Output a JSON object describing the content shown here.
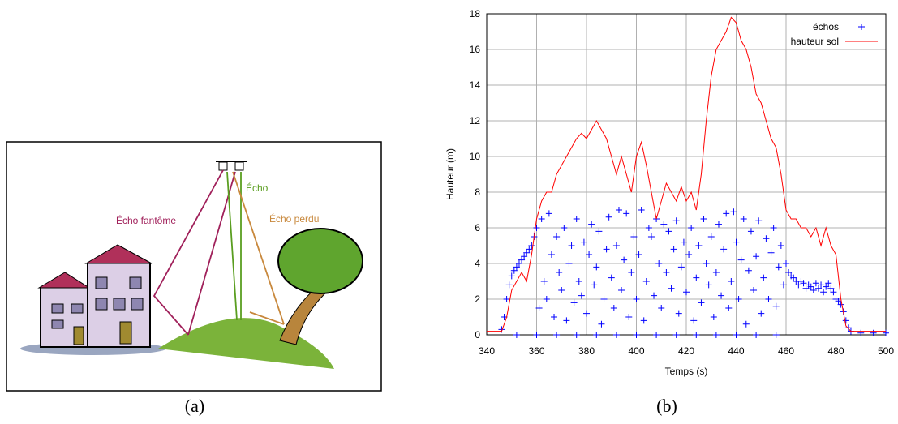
{
  "figure_a": {
    "labels": {
      "ghost": "Écho fantôme",
      "echo": "Écho",
      "lost": "Écho perdu"
    },
    "caption": "(a)"
  },
  "chart_data": {
    "type": "scatter",
    "caption": "(b)",
    "x_label": "Temps (s)",
    "y_label": "Hauteur (m)",
    "xlim": [
      340,
      500
    ],
    "ylim": [
      0,
      18
    ],
    "xticks": [
      340,
      360,
      380,
      400,
      420,
      440,
      460,
      480,
      500
    ],
    "yticks": [
      0,
      2,
      4,
      6,
      8,
      10,
      12,
      14,
      16,
      18
    ],
    "grid": true,
    "legend": "top-right",
    "series": [
      {
        "name": "échos",
        "color": "#0000ff",
        "kind": "points",
        "x": [
          346,
          347,
          348,
          349,
          350,
          351,
          352,
          353,
          354,
          355,
          356,
          357,
          358,
          359,
          360,
          361,
          362,
          363,
          364,
          365,
          366,
          367,
          368,
          369,
          370,
          371,
          372,
          373,
          374,
          375,
          376,
          377,
          378,
          379,
          380,
          381,
          382,
          383,
          384,
          385,
          386,
          387,
          388,
          389,
          390,
          391,
          392,
          393,
          394,
          395,
          396,
          397,
          398,
          399,
          400,
          401,
          402,
          403,
          404,
          405,
          406,
          407,
          408,
          409,
          410,
          411,
          412,
          413,
          414,
          415,
          416,
          417,
          418,
          419,
          420,
          421,
          422,
          423,
          424,
          425,
          426,
          427,
          428,
          429,
          430,
          431,
          432,
          433,
          434,
          435,
          436,
          437,
          438,
          439,
          440,
          441,
          442,
          443,
          444,
          445,
          446,
          447,
          448,
          449,
          450,
          451,
          452,
          453,
          454,
          455,
          456,
          457,
          458,
          459,
          460,
          461,
          462,
          463,
          464,
          465,
          466,
          467,
          468,
          469,
          470,
          471,
          472,
          473,
          474,
          475,
          476,
          477,
          478,
          479,
          480,
          481,
          482,
          483,
          484,
          485,
          486,
          490,
          495,
          500,
          352,
          360,
          368,
          376,
          384,
          392,
          400,
          408,
          416,
          424,
          432,
          440,
          448,
          456
        ],
        "values": [
          0.3,
          1,
          2,
          2.8,
          3.3,
          3.6,
          3.8,
          4,
          4.2,
          4.4,
          4.6,
          4.8,
          5,
          5.5,
          6,
          1.5,
          6.5,
          3,
          2,
          6.8,
          4.5,
          1,
          5.5,
          3.5,
          2.5,
          6,
          0.8,
          4,
          5,
          1.8,
          6.5,
          3,
          2.2,
          5.2,
          1.2,
          4.5,
          6.2,
          2.8,
          3.8,
          5.8,
          0.6,
          2,
          4.8,
          6.6,
          3.2,
          1.5,
          5,
          7,
          2.5,
          4.2,
          6.8,
          1,
          3.5,
          5.5,
          2,
          4.5,
          7,
          0.8,
          3,
          6,
          5.5,
          2.2,
          6.5,
          4,
          1.5,
          6.2,
          3.5,
          5.8,
          2.6,
          4.8,
          6.4,
          1.2,
          3.8,
          5.2,
          2.4,
          4.5,
          6,
          0.8,
          3.2,
          5,
          1.8,
          6.5,
          4,
          2.8,
          5.5,
          1,
          3.5,
          6.2,
          2.2,
          4.8,
          6.8,
          1.5,
          3,
          6.9,
          5.2,
          2,
          4.2,
          6.5,
          0.6,
          3.6,
          5.8,
          2.5,
          4.4,
          6.4,
          1.2,
          3.2,
          5.4,
          2,
          4.6,
          6,
          1.6,
          3.8,
          5,
          2.8,
          4,
          3.5,
          3.3,
          3.2,
          3,
          2.8,
          3,
          2.9,
          2.6,
          2.8,
          2.7,
          2.5,
          2.9,
          2.6,
          2.8,
          2.4,
          2.7,
          2.9,
          2.6,
          2.4,
          2,
          1.9,
          1.7,
          1.3,
          0.8,
          0.4,
          0.2,
          0.1,
          0.1,
          0.1,
          0,
          0,
          0,
          0,
          0,
          0,
          0,
          0,
          0,
          0,
          0,
          0,
          0,
          0
        ]
      },
      {
        "name": "hauteur sol",
        "color": "#ff0000",
        "kind": "line",
        "x": [
          340,
          346,
          348,
          350,
          352,
          354,
          356,
          358,
          360,
          362,
          364,
          366,
          368,
          370,
          372,
          374,
          376,
          378,
          380,
          382,
          384,
          386,
          388,
          390,
          392,
          394,
          396,
          398,
          400,
          402,
          404,
          406,
          408,
          410,
          412,
          414,
          416,
          418,
          420,
          422,
          424,
          426,
          428,
          430,
          432,
          434,
          436,
          438,
          440,
          442,
          444,
          446,
          448,
          450,
          452,
          454,
          456,
          458,
          460,
          462,
          464,
          466,
          468,
          470,
          472,
          474,
          476,
          478,
          480,
          482,
          484,
          486,
          500
        ],
        "values": [
          0.2,
          0.2,
          1,
          2.5,
          3,
          3.5,
          3,
          4.5,
          6.5,
          7.5,
          8,
          8,
          9,
          9.5,
          10,
          10.5,
          11,
          11.3,
          11,
          11.5,
          12,
          11.5,
          11,
          10,
          9,
          10,
          9,
          8,
          10,
          10.8,
          9.5,
          8,
          6.5,
          7.5,
          8.5,
          8,
          7.5,
          8.3,
          7.5,
          8,
          7,
          9,
          12,
          14.5,
          16,
          16.5,
          17,
          17.8,
          17.5,
          16.5,
          16,
          15,
          13.5,
          13,
          12,
          11,
          10.5,
          9,
          7,
          6.5,
          6.5,
          6,
          6,
          5.5,
          6,
          5,
          6,
          5,
          4.5,
          2,
          0.5,
          0.2,
          0.2
        ]
      }
    ]
  }
}
